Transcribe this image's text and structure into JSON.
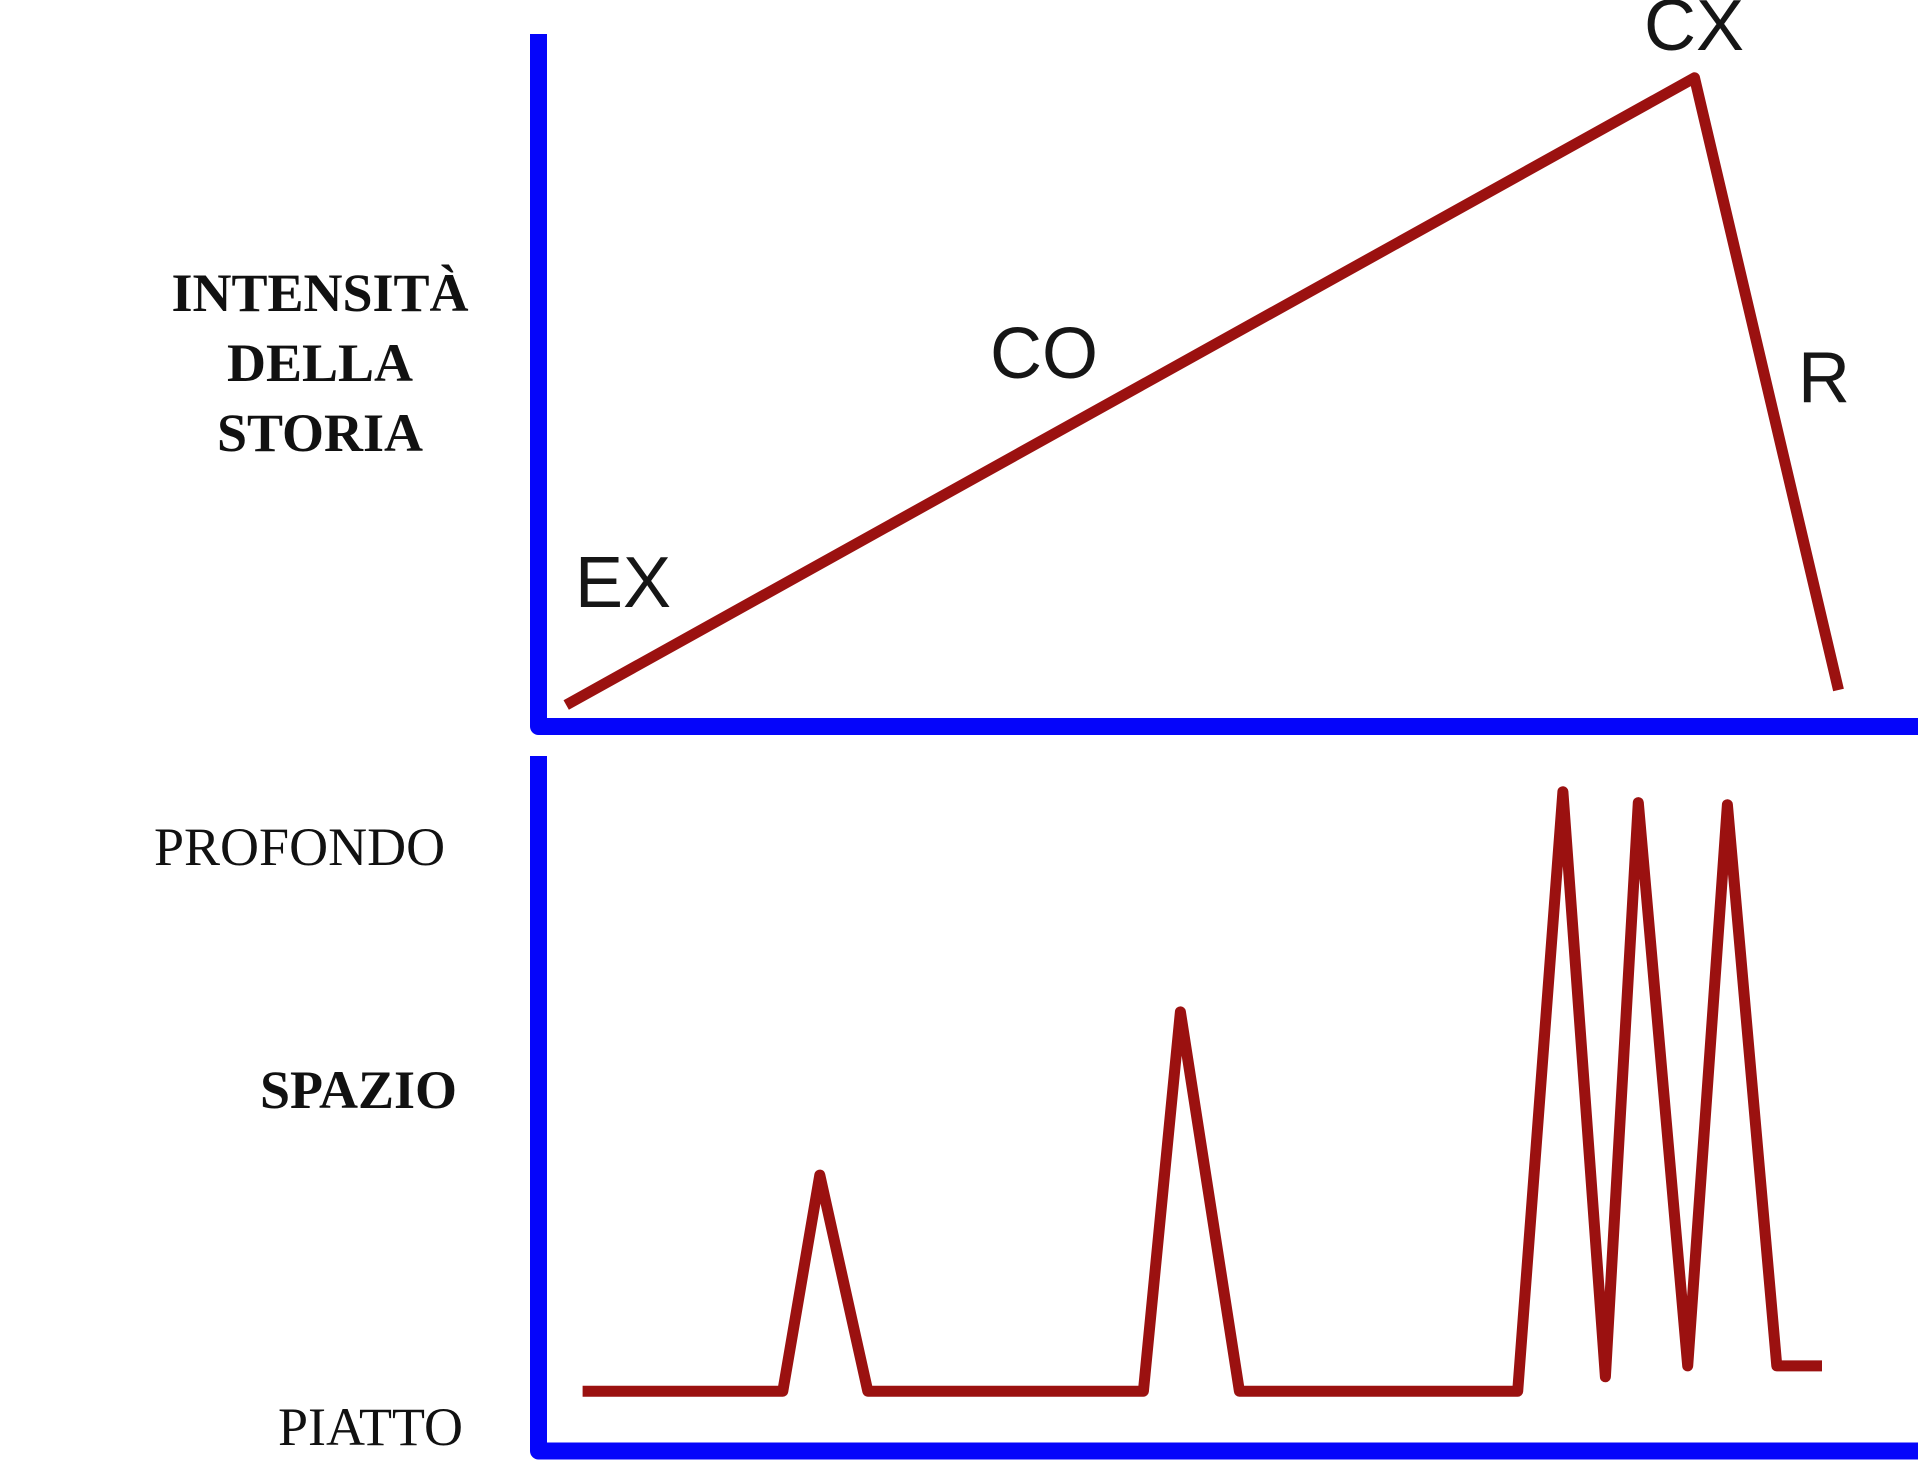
{
  "colors": {
    "axis_blue": "#0505FA",
    "line_red": "#9B1110",
    "text_black": "#111111"
  },
  "chart_data": [
    {
      "type": "line",
      "title": "",
      "xlabel": "",
      "ylabel": "INTENSITÀ DELLA STORIA",
      "ylabel_lines": [
        "INTENSITÀ",
        "DELLA",
        "STORIA"
      ],
      "xlim": [
        0,
        1
      ],
      "ylim": [
        0,
        1
      ],
      "grid": false,
      "legend": "none",
      "axes_style": "thick blue L-shaped axes, no ticks",
      "series": [
        {
          "name": "intensità della storia",
          "points": [
            [
              0.014,
              0.019
            ],
            [
              0.837,
              0.936
            ],
            [
              0.942,
              0.041
            ]
          ]
        }
      ],
      "annotations": [
        {
          "label": "EX",
          "position": "start of rising line"
        },
        {
          "label": "CO",
          "position": "middle of rising line"
        },
        {
          "label": "CX",
          "position": "peak"
        },
        {
          "label": "R",
          "position": "falling line"
        }
      ]
    },
    {
      "type": "line",
      "title": "",
      "xlabel": "",
      "ylabel": "SPAZIO",
      "y_tick_labels": {
        "top": "PROFONDO",
        "bottom": "PIATTO"
      },
      "xlim": [
        0,
        1
      ],
      "ylim": [
        0,
        1
      ],
      "grid": false,
      "legend": "none",
      "axes_style": "thick blue L-shaped axes, no ticks",
      "series": [
        {
          "name": "spazio",
          "points": [
            [
              0.026,
              0.074
            ],
            [
              0.172,
              0.074
            ],
            [
              0.199,
              0.389
            ],
            [
              0.234,
              0.074
            ],
            [
              0.435,
              0.074
            ],
            [
              0.462,
              0.627
            ],
            [
              0.505,
              0.074
            ],
            [
              0.708,
              0.074
            ],
            [
              0.741,
              0.948
            ],
            [
              0.772,
              0.095
            ],
            [
              0.796,
              0.932
            ],
            [
              0.832,
              0.111
            ],
            [
              0.861,
              0.929
            ],
            [
              0.897,
              0.111
            ],
            [
              0.93,
              0.111
            ]
          ]
        }
      ]
    }
  ]
}
